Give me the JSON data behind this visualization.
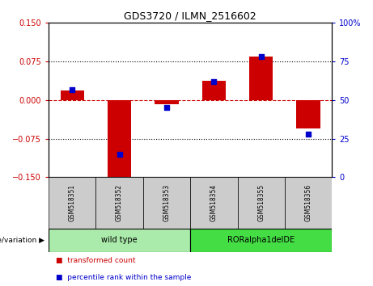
{
  "title": "GDS3720 / ILMN_2516602",
  "samples": [
    "GSM518351",
    "GSM518352",
    "GSM518353",
    "GSM518354",
    "GSM518355",
    "GSM518356"
  ],
  "transformed_count": [
    0.018,
    -0.155,
    -0.008,
    0.038,
    0.085,
    -0.055
  ],
  "percentile_rank": [
    57,
    15,
    45,
    62,
    78,
    28
  ],
  "left_ylim": [
    -0.15,
    0.15
  ],
  "right_ylim": [
    0,
    100
  ],
  "left_yticks": [
    -0.15,
    -0.075,
    0,
    0.075,
    0.15
  ],
  "right_yticks": [
    0,
    25,
    50,
    75,
    100
  ],
  "right_yticklabels": [
    "0",
    "25",
    "50",
    "75",
    "100%"
  ],
  "bar_color": "#cc0000",
  "dot_color": "#0000cc",
  "zero_line_color": "#cc0000",
  "dotted_line_color": "#000000",
  "groups": [
    {
      "label": "wild type",
      "indices": [
        0,
        1,
        2
      ],
      "color": "#aaeaaa"
    },
    {
      "label": "RORalpha1delDE",
      "indices": [
        3,
        4,
        5
      ],
      "color": "#44dd44"
    }
  ],
  "group_header": "genotype/variation",
  "legend_items": [
    {
      "label": "transformed count",
      "color": "#cc0000"
    },
    {
      "label": "percentile rank within the sample",
      "color": "#0000cc"
    }
  ],
  "bar_width": 0.5,
  "dot_size": 25,
  "background_color": "#ffffff",
  "tick_area_color": "#cccccc"
}
